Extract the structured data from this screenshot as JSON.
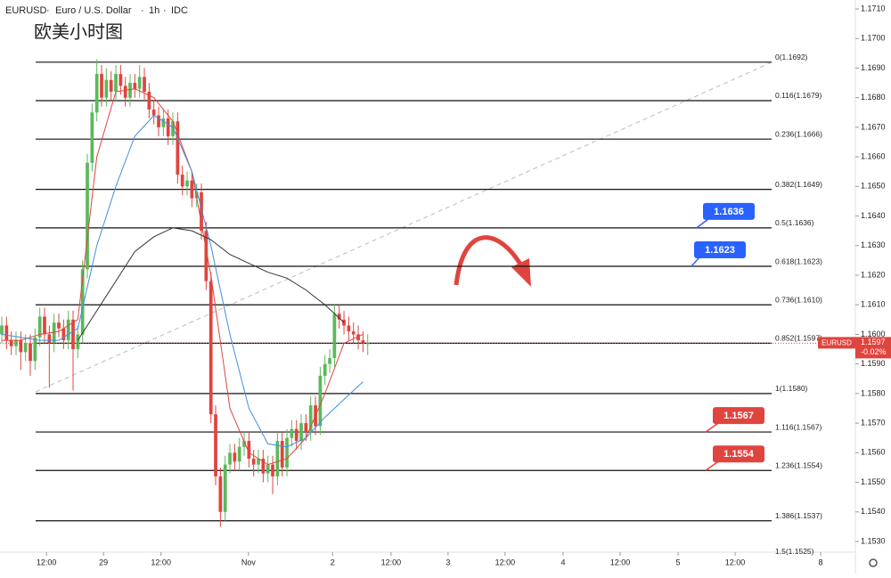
{
  "header": {
    "symbol": "EURUSD",
    "name": "Euro / U.S. Dollar",
    "interval": "1h",
    "source": "IDC",
    "note": "欧美小时图"
  },
  "chart_data": {
    "type": "candlestick",
    "ylim": [
      1.153,
      1.171
    ],
    "yticks": [
      {
        "value": 1.171,
        "label": "1.1710"
      },
      {
        "value": 1.17,
        "label": "1.1700"
      },
      {
        "value": 1.169,
        "label": "1.1690"
      },
      {
        "value": 1.168,
        "label": "1.1680"
      },
      {
        "value": 1.167,
        "label": "1.1670"
      },
      {
        "value": 1.166,
        "label": "1.1660"
      },
      {
        "value": 1.165,
        "label": "1.1650"
      },
      {
        "value": 1.164,
        "label": "1.1640"
      },
      {
        "value": 1.163,
        "label": "1.1630"
      },
      {
        "value": 1.162,
        "label": "1.1620"
      },
      {
        "value": 1.161,
        "label": "1.1610"
      },
      {
        "value": 1.16,
        "label": "1.1600"
      },
      {
        "value": 1.159,
        "label": "1.1590"
      },
      {
        "value": 1.158,
        "label": "1.1580"
      },
      {
        "value": 1.157,
        "label": "1.1570"
      },
      {
        "value": 1.156,
        "label": "1.1560"
      },
      {
        "value": 1.155,
        "label": "1.1550"
      },
      {
        "value": 1.154,
        "label": "1.1540"
      },
      {
        "value": 1.153,
        "label": "1.1530"
      }
    ],
    "xlim": [
      -0.375,
      179.6
    ],
    "xticks": [
      {
        "value": 9.4,
        "label": "12:00"
      },
      {
        "value": 21.4,
        "label": "29"
      },
      {
        "value": 33.5,
        "label": "12:00"
      },
      {
        "value": 51.9,
        "label": "Nov"
      },
      {
        "value": 69.6,
        "label": "2"
      },
      {
        "value": 81.9,
        "label": "12:00"
      },
      {
        "value": 93.9,
        "label": "3"
      },
      {
        "value": 105.9,
        "label": "12:00"
      },
      {
        "value": 118.1,
        "label": "4"
      },
      {
        "value": 130.1,
        "label": "12:00"
      },
      {
        "value": 142.3,
        "label": "5"
      },
      {
        "value": 154.3,
        "label": "12:00"
      },
      {
        "value": 172.3,
        "label": "8"
      }
    ],
    "up_color": "#5cb85c",
    "down_color": "#e0443e",
    "ohlc": [
      [
        1.16,
        1.1606,
        1.1597,
        1.1603
      ],
      [
        1.1603,
        1.1606,
        1.1595,
        1.1598
      ],
      [
        1.1598,
        1.1601,
        1.1593,
        1.1596
      ],
      [
        1.1596,
        1.1601,
        1.1593,
        1.1598
      ],
      [
        1.1598,
        1.1601,
        1.1588,
        1.1594
      ],
      [
        1.1594,
        1.16,
        1.1591,
        1.1597
      ],
      [
        1.1597,
        1.16,
        1.1586,
        1.1591
      ],
      [
        1.1591,
        1.1602,
        1.1588,
        1.1599
      ],
      [
        1.1599,
        1.1609,
        1.1596,
        1.1606
      ],
      [
        1.1606,
        1.1609,
        1.1597,
        1.16
      ],
      [
        1.16,
        1.1603,
        1.1582,
        1.1597
      ],
      [
        1.1597,
        1.1607,
        1.1594,
        1.1604
      ],
      [
        1.1604,
        1.1607,
        1.1599,
        1.1602
      ],
      [
        1.1602,
        1.1605,
        1.1595,
        1.1598
      ],
      [
        1.1598,
        1.1608,
        1.1595,
        1.1605
      ],
      [
        1.1605,
        1.1608,
        1.1581,
        1.1595
      ],
      [
        1.1595,
        1.1603,
        1.1592,
        1.16
      ],
      [
        1.16,
        1.1625,
        1.1597,
        1.1622
      ],
      [
        1.1622,
        1.1661,
        1.1619,
        1.1658
      ],
      [
        1.1658,
        1.1678,
        1.1655,
        1.1675
      ],
      [
        1.1675,
        1.1693,
        1.1672,
        1.1688
      ],
      [
        1.1688,
        1.1691,
        1.1677,
        1.168
      ],
      [
        1.168,
        1.169,
        1.1677,
        1.1686
      ],
      [
        1.1686,
        1.1689,
        1.1679,
        1.1682
      ],
      [
        1.1682,
        1.1691,
        1.1679,
        1.1688
      ],
      [
        1.1688,
        1.1691,
        1.1681,
        1.1684
      ],
      [
        1.1684,
        1.1687,
        1.1677,
        1.168
      ],
      [
        1.168,
        1.1688,
        1.1677,
        1.1685
      ],
      [
        1.1685,
        1.1688,
        1.168,
        1.1683
      ],
      [
        1.1683,
        1.1691,
        1.168,
        1.1687
      ],
      [
        1.1687,
        1.169,
        1.1679,
        1.1682
      ],
      [
        1.1682,
        1.1685,
        1.1673,
        1.1676
      ],
      [
        1.1676,
        1.1679,
        1.1671,
        1.1674
      ],
      [
        1.1674,
        1.1677,
        1.1667,
        1.167
      ],
      [
        1.167,
        1.1676,
        1.1667,
        1.1673
      ],
      [
        1.1673,
        1.1676,
        1.1664,
        1.1667
      ],
      [
        1.1667,
        1.1675,
        1.1664,
        1.1672
      ],
      [
        1.1672,
        1.1675,
        1.1651,
        1.1654
      ],
      [
        1.1654,
        1.1657,
        1.1647,
        1.165
      ],
      [
        1.165,
        1.1655,
        1.1647,
        1.1652
      ],
      [
        1.1652,
        1.1655,
        1.1643,
        1.1646
      ],
      [
        1.1646,
        1.1651,
        1.1643,
        1.1648
      ],
      [
        1.1648,
        1.1651,
        1.1632,
        1.1635
      ],
      [
        1.1635,
        1.1638,
        1.1615,
        1.1618
      ],
      [
        1.1618,
        1.1621,
        1.157,
        1.1573
      ],
      [
        1.1573,
        1.1576,
        1.1549,
        1.1552
      ],
      [
        1.1552,
        1.1555,
        1.1535,
        1.154
      ],
      [
        1.154,
        1.1559,
        1.1537,
        1.1556
      ],
      [
        1.1556,
        1.1563,
        1.1553,
        1.156
      ],
      [
        1.156,
        1.1563,
        1.1554,
        1.1557
      ],
      [
        1.1557,
        1.1565,
        1.1554,
        1.1562
      ],
      [
        1.1562,
        1.1567,
        1.1559,
        1.1564
      ],
      [
        1.1564,
        1.1567,
        1.1555,
        1.1558
      ],
      [
        1.1558,
        1.1561,
        1.1552,
        1.1556
      ],
      [
        1.1556,
        1.1561,
        1.1553,
        1.1558
      ],
      [
        1.1558,
        1.1561,
        1.155,
        1.1553
      ],
      [
        1.1553,
        1.1559,
        1.155,
        1.1556
      ],
      [
        1.1556,
        1.1559,
        1.1546,
        1.1552
      ],
      [
        1.1552,
        1.1567,
        1.1549,
        1.1564
      ],
      [
        1.1564,
        1.1567,
        1.1552,
        1.1555
      ],
      [
        1.1555,
        1.1568,
        1.1552,
        1.1565
      ],
      [
        1.1565,
        1.1571,
        1.1562,
        1.1568
      ],
      [
        1.1568,
        1.1571,
        1.1561,
        1.1564
      ],
      [
        1.1564,
        1.1573,
        1.1561,
        1.157
      ],
      [
        1.157,
        1.1573,
        1.1564,
        1.1567
      ],
      [
        1.1567,
        1.1579,
        1.1564,
        1.1576
      ],
      [
        1.1576,
        1.1579,
        1.1566,
        1.1569
      ],
      [
        1.1569,
        1.1589,
        1.1566,
        1.1586
      ],
      [
        1.1586,
        1.1593,
        1.1583,
        1.159
      ],
      [
        1.159,
        1.1595,
        1.1587,
        1.1592
      ],
      [
        1.1592,
        1.161,
        1.1589,
        1.1607
      ],
      [
        1.1607,
        1.161,
        1.1602,
        1.1605
      ],
      [
        1.1605,
        1.1608,
        1.16,
        1.1603
      ],
      [
        1.1603,
        1.1606,
        1.1598,
        1.1601
      ],
      [
        1.1601,
        1.1604,
        1.1597,
        1.16
      ],
      [
        1.16,
        1.1603,
        1.1595,
        1.1598
      ],
      [
        1.1598,
        1.1601,
        1.1594,
        1.1597
      ],
      [
        1.1597,
        1.16,
        1.1593,
        1.1597
      ]
    ],
    "ma_x": [
      0,
      4,
      8,
      12,
      16,
      20,
      24,
      28,
      32,
      36,
      40,
      44,
      48,
      52,
      56,
      60,
      64,
      68,
      72,
      76
    ],
    "ma": [
      {
        "color": "#e0443e",
        "values": [
          1.1598,
          1.1598,
          1.16,
          1.1601,
          1.1605,
          1.166,
          1.1682,
          1.1683,
          1.168,
          1.1672,
          1.1655,
          1.162,
          1.1575,
          1.156,
          1.1556,
          1.1558,
          1.1565,
          1.158,
          1.1597,
          1.16
        ]
      },
      {
        "color": "#3d8fe0",
        "values": [
          1.16,
          1.1599,
          1.1598,
          1.1598,
          1.1602,
          1.163,
          1.165,
          1.1667,
          1.1674,
          1.167,
          1.1655,
          1.163,
          1.16,
          1.1575,
          1.1563,
          1.1562,
          1.1565,
          1.1572,
          1.1578,
          1.1584
        ]
      },
      {
        "color": "#333333",
        "values": [
          null,
          null,
          null,
          null,
          1.1598,
          1.1608,
          1.1618,
          1.1628,
          1.1633,
          1.1636,
          1.1635,
          1.1632,
          1.1627,
          1.1624,
          1.1621,
          1.1619,
          1.1615,
          1.161,
          1.1604,
          null
        ]
      }
    ],
    "fib": [
      {
        "value": 1.1692,
        "label": "0(1.1692)"
      },
      {
        "value": 1.1679,
        "label": "0.116(1.1679)"
      },
      {
        "value": 1.1666,
        "label": "0.236(1.1666)"
      },
      {
        "value": 1.1649,
        "label": "0.382(1.1649)"
      },
      {
        "value": 1.1636,
        "label": "0.5(1.1636)"
      },
      {
        "value": 1.1623,
        "label": "0.618(1.1623)"
      },
      {
        "value": 1.161,
        "label": "0.736(1.1610)"
      },
      {
        "value": 1.1597,
        "label": "0.852(1.1597)"
      },
      {
        "value": 1.158,
        "label": "1(1.1580)"
      },
      {
        "value": 1.1567,
        "label": "1.116(1.1567)"
      },
      {
        "value": 1.1554,
        "label": "1.236(1.1554)"
      },
      {
        "value": 1.1537,
        "label": "1.386(1.1537)"
      },
      {
        "value": 1.1525,
        "label": "1.5(1.1525)"
      }
    ],
    "callouts": [
      {
        "value": 1.1636,
        "label": "1.1636",
        "color": "#2962ff"
      },
      {
        "value": 1.1623,
        "label": "1.1623",
        "color": "#2962ff"
      },
      {
        "value": 1.1567,
        "label": "1.1567",
        "color": "#e0443e"
      },
      {
        "value": 1.1554,
        "label": "1.1554",
        "color": "#e0443e"
      }
    ],
    "last": {
      "value": 1.1597,
      "label": "1.1597",
      "symbol": "EURUSD",
      "change": "-0.02%",
      "color": "#e0443e"
    }
  }
}
